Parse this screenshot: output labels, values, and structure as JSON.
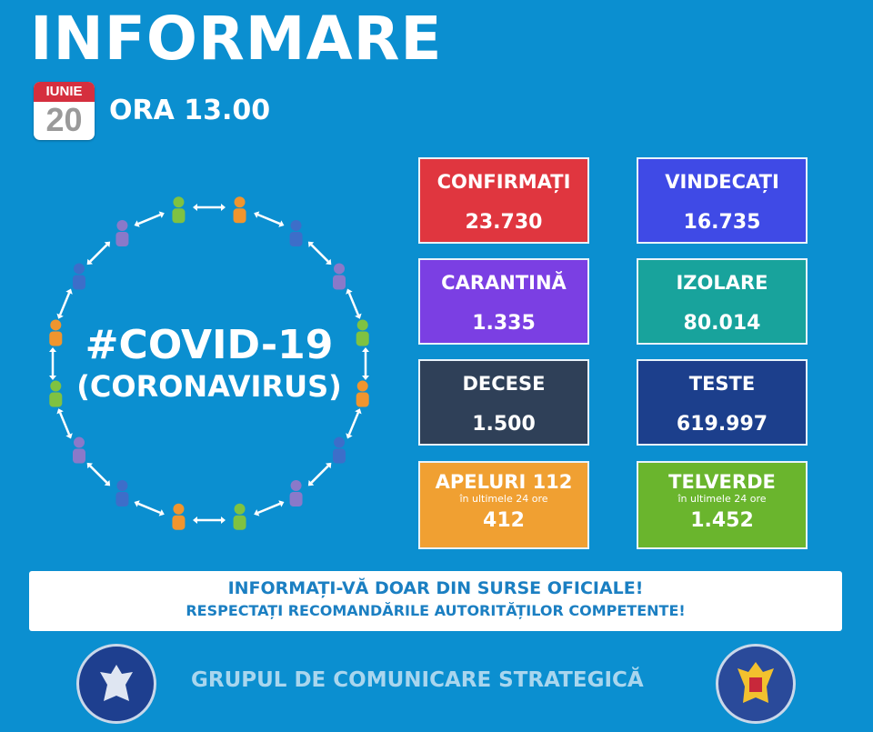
{
  "header": {
    "title": "INFORMARE",
    "calendar_month": "IUNIE",
    "calendar_day": "20",
    "time": "ORA 13.00"
  },
  "center": {
    "hashtag": "#COVID-19",
    "subtitle": "(CORONAVIRUS)",
    "people_colors": [
      "#7fc241",
      "#f0952e",
      "#3d6ec9",
      "#8a79c9",
      "#7fc241",
      "#f0952e",
      "#3d6ec9",
      "#8a79c9",
      "#7fc241",
      "#f0952e",
      "#3d6ec9",
      "#8a79c9",
      "#7fc241",
      "#f0952e",
      "#3d6ec9",
      "#8a79c9"
    ]
  },
  "stats": [
    {
      "label": "CONFIRMAȚI",
      "value": "23.730",
      "color": "#e0363f"
    },
    {
      "label": "VINDECAȚI",
      "value": "16.735",
      "color": "#3f4ae6"
    },
    {
      "label": "CARANTINĂ",
      "value": "1.335",
      "color": "#7b3fe3"
    },
    {
      "label": "IZOLARE",
      "value": "80.014",
      "color": "#18a39c"
    },
    {
      "label": "DECESE",
      "value": "1.500",
      "color": "#2f4058"
    },
    {
      "label": "TESTE",
      "value": "619.997",
      "color": "#1c3f8c"
    },
    {
      "label": "APELURI 112",
      "sub": "în ultimele 24 ore",
      "value": "412",
      "color": "#f0a032"
    },
    {
      "label": "TELVERDE",
      "sub": "în ultimele 24 ore",
      "value": "1.452",
      "color": "#6ab52d"
    }
  ],
  "banner": {
    "line1": "INFORMAȚI-VĂ DOAR DIN SURSE OFICIALE!",
    "line2": "RESPECTAȚI RECOMANDĂRILE AUTORITĂȚILOR COMPETENTE!"
  },
  "footer": {
    "text": "GRUPUL DE COMUNICARE STRATEGICĂ",
    "left_logo": "GUVERNUL ROMÂNIEI",
    "right_logo": "DEPARTAMENTUL PENTRU SITUAȚII DE URGENȚĂ M.A.I."
  }
}
